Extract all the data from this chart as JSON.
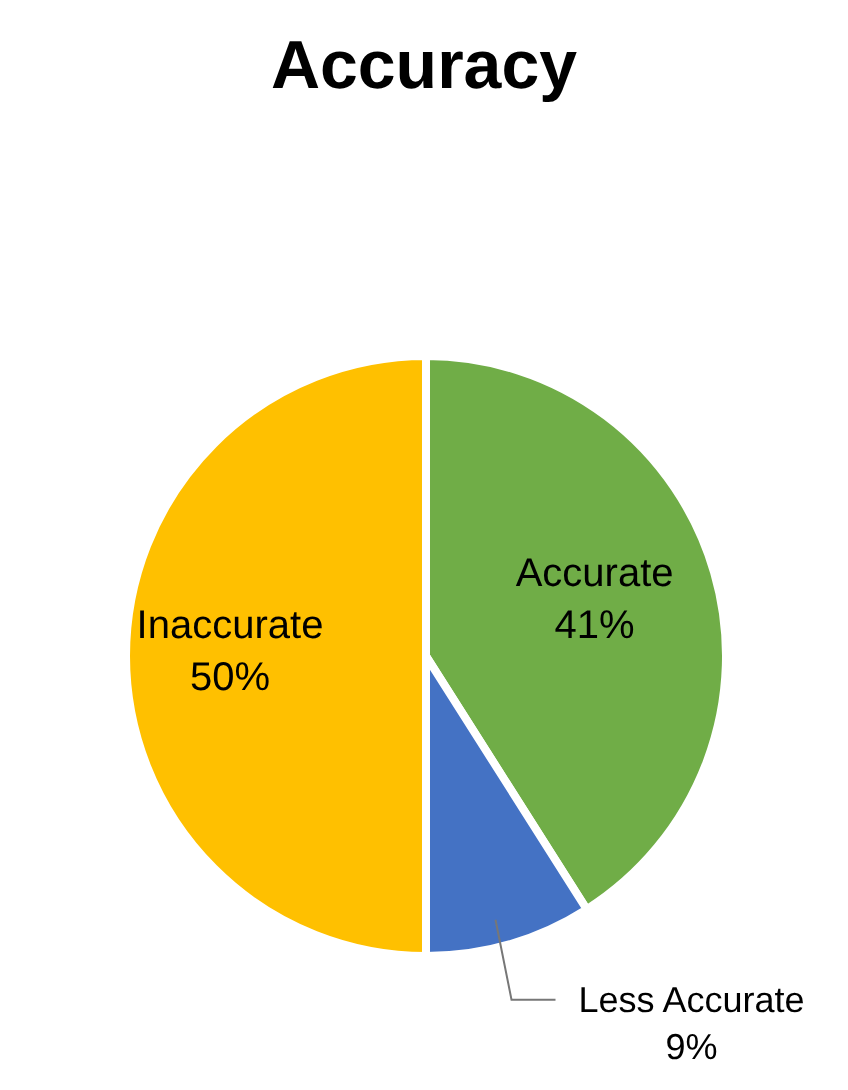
{
  "chart_data": {
    "type": "pie",
    "title": "Accuracy",
    "categories": [
      "Accurate",
      "Less Accurate",
      "Inaccurate"
    ],
    "values": [
      41,
      9,
      50
    ],
    "colors": [
      "#70ad47",
      "#4472c4",
      "#ffc000"
    ],
    "value_labels": [
      "41%",
      "9%",
      "50%"
    ],
    "legend": false
  }
}
